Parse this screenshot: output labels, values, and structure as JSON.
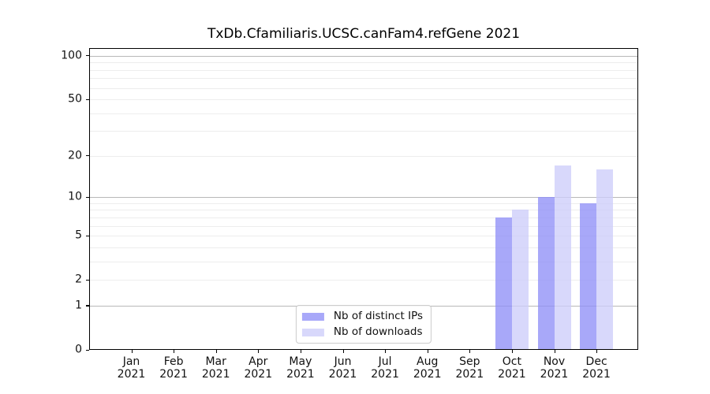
{
  "chart_data": {
    "type": "bar",
    "title": "TxDb.Cfamiliaris.UCSC.canFam4.refGene 2021",
    "categories": [
      {
        "month": "Jan",
        "year": "2021"
      },
      {
        "month": "Feb",
        "year": "2021"
      },
      {
        "month": "Mar",
        "year": "2021"
      },
      {
        "month": "Apr",
        "year": "2021"
      },
      {
        "month": "May",
        "year": "2021"
      },
      {
        "month": "Jun",
        "year": "2021"
      },
      {
        "month": "Jul",
        "year": "2021"
      },
      {
        "month": "Aug",
        "year": "2021"
      },
      {
        "month": "Sep",
        "year": "2021"
      },
      {
        "month": "Oct",
        "year": "2021"
      },
      {
        "month": "Nov",
        "year": "2021"
      },
      {
        "month": "Dec",
        "year": "2021"
      }
    ],
    "series": [
      {
        "name": "Nb of distinct IPs",
        "color": "rgba(143,143,247,0.78)",
        "color_hex_on_white": "#a9a9f8",
        "values": [
          0,
          0,
          0,
          0,
          0,
          0,
          0,
          0,
          0,
          7,
          10,
          9
        ]
      },
      {
        "name": "Nb of downloads",
        "color": "rgba(205,205,250,0.78)",
        "color_hex_on_white": "#dcdcfa",
        "values": [
          0,
          0,
          0,
          0,
          0,
          0,
          0,
          0,
          0,
          8,
          17,
          16
        ]
      }
    ],
    "y_axis": {
      "scale": "log1p",
      "ticks": [
        0,
        1,
        2,
        5,
        10,
        20,
        50,
        100
      ],
      "major_gridlines": [
        1,
        10,
        100
      ],
      "minor_gridlines": [
        2,
        3,
        4,
        5,
        6,
        7,
        8,
        9,
        20,
        30,
        40,
        50,
        60,
        70,
        80,
        90
      ],
      "ylim": [
        0,
        113
      ]
    },
    "xlabel": "",
    "ylabel": "",
    "grid": "horizontal",
    "legend_position": "lower center",
    "colors": {
      "major_grid": "#b8b8b8",
      "minor_grid": "#ededed",
      "axis": "#000000",
      "legend_border": "#cccccc"
    }
  }
}
